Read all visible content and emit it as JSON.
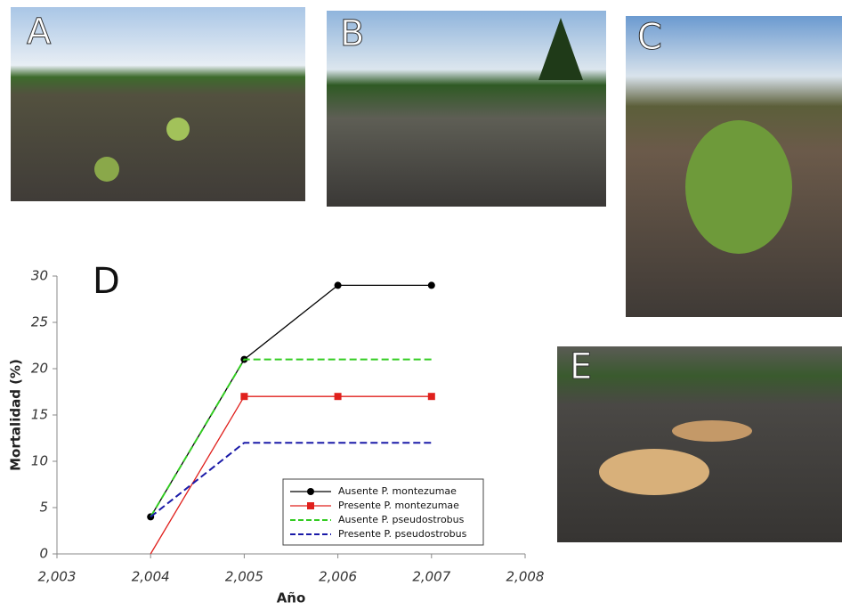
{
  "panel_labels": [
    "A",
    "B",
    "C",
    "E"
  ],
  "chart_data": {
    "type": "line",
    "annotation": "D",
    "x_label": "Año",
    "y_label": "Mortalidad (%)",
    "x": [
      2004,
      2005,
      2006,
      2007
    ],
    "xlim": [
      2003,
      2008
    ],
    "xticks": [
      {
        "value": 2003,
        "label": "2,003"
      },
      {
        "value": 2004,
        "label": "2,004"
      },
      {
        "value": 2005,
        "label": "2,005"
      },
      {
        "value": 2006,
        "label": "2,006"
      },
      {
        "value": 2007,
        "label": "2,007"
      },
      {
        "value": 2008,
        "label": "2,008"
      }
    ],
    "ylim": [
      0,
      30
    ],
    "yticks": [
      0,
      5,
      10,
      15,
      20,
      25,
      30
    ],
    "series": [
      {
        "name": "Ausente P. montezumae",
        "color": "#000000",
        "dashed": false,
        "marker": "circle",
        "values": [
          4,
          21,
          29,
          29
        ]
      },
      {
        "name": "Presente P. montezumae",
        "color": "#e0201c",
        "dashed": false,
        "marker": "square",
        "values": [
          0,
          17,
          17,
          17
        ]
      },
      {
        "name": "Ausente P.  pseudostrobus",
        "color": "#33cc22",
        "dashed": true,
        "marker": "none",
        "values": [
          4,
          21,
          21,
          21
        ]
      },
      {
        "name": "Presente P. pseudostrobus",
        "color": "#1a1aa8",
        "dashed": true,
        "marker": "none",
        "values": [
          4,
          12,
          12,
          12
        ]
      }
    ]
  }
}
